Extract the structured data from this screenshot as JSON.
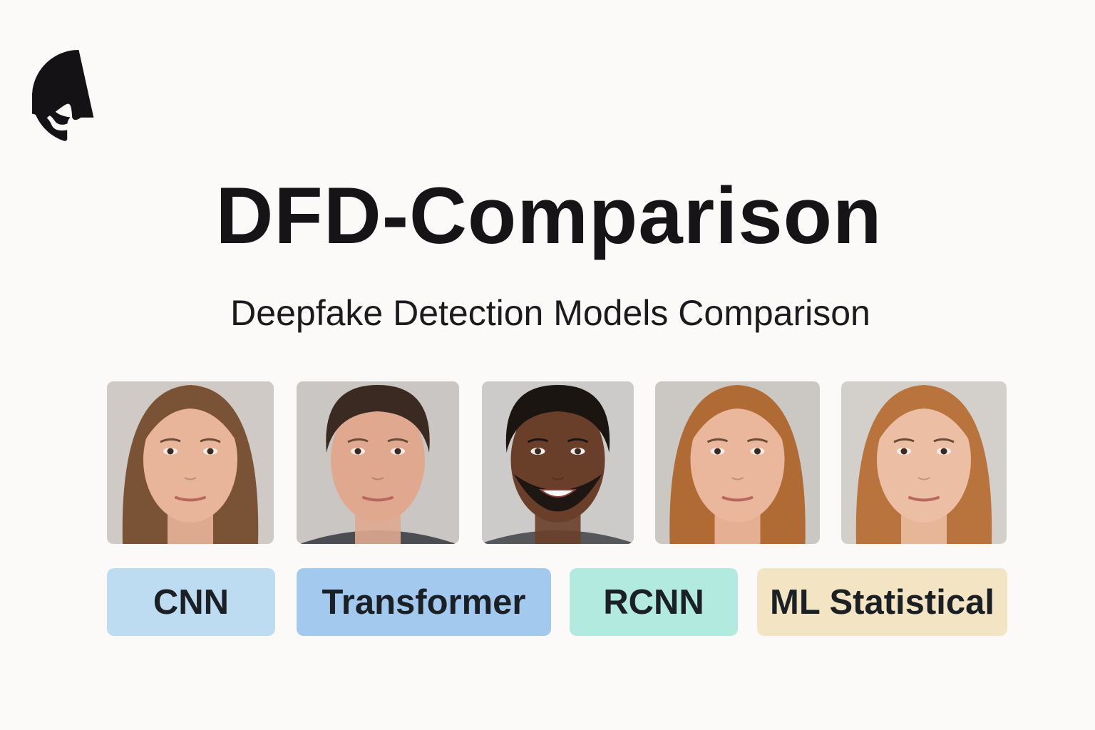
{
  "header": {
    "title": "DFD-Comparison",
    "subtitle": "Deepfake Detection Models Comparison"
  },
  "tags": [
    {
      "label": "CNN"
    },
    {
      "label": "Transformer"
    },
    {
      "label": "RCNN"
    },
    {
      "label": "ML Statistical"
    }
  ]
}
